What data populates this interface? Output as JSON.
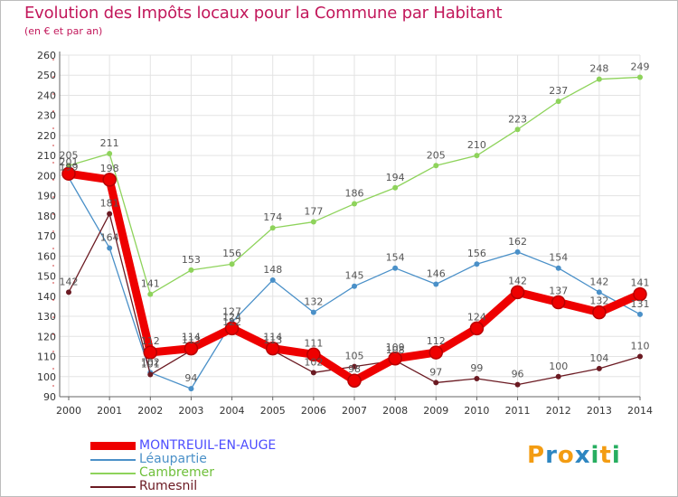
{
  "title": "Evolution des Impôts locaux pour la Commune par Habitant",
  "subtitle": "(en € et par an)",
  "logo": {
    "letters": [
      "P",
      "r",
      "o",
      "x",
      "i",
      "t",
      "i"
    ],
    "colors": [
      "#f39c12",
      "#2e86c1",
      "#f39c12",
      "#2e86c1",
      "#27ae60",
      "#f39c12",
      "#27ae60"
    ]
  },
  "chart_data": {
    "type": "line",
    "title": "Evolution des Impôts locaux pour la Commune par Habitant",
    "ylabel": "(en € et par an)",
    "xlabel": "",
    "ylim": [
      90,
      260
    ],
    "yticks": [
      90,
      100,
      110,
      120,
      130,
      140,
      150,
      160,
      170,
      180,
      190,
      200,
      210,
      220,
      230,
      240,
      250,
      260
    ],
    "x": [
      2000,
      2001,
      2002,
      2003,
      2004,
      2005,
      2006,
      2007,
      2008,
      2009,
      2010,
      2011,
      2012,
      2013,
      2014
    ],
    "grid": true,
    "legend_position": "bottom-left",
    "series": [
      {
        "name": "Cambremer",
        "color": "#8ed35b",
        "thick": false,
        "values": [
          205,
          211,
          141,
          153,
          156,
          174,
          177,
          186,
          194,
          205,
          210,
          223,
          237,
          248,
          249
        ]
      },
      {
        "name": "Léaupartie",
        "color": "#4a90c8",
        "thick": false,
        "values": [
          199,
          164,
          102,
          94,
          127,
          148,
          132,
          145,
          154,
          146,
          156,
          162,
          154,
          142,
          131
        ]
      },
      {
        "name": "Rumesnil",
        "color": "#6b1a22",
        "thick": false,
        "values": [
          142,
          181,
          101,
          113,
          122,
          113,
          102,
          105,
          108,
          97,
          99,
          96,
          100,
          104,
          110
        ]
      },
      {
        "name": "MONTREUIL-EN-AUGE",
        "color": "#ee0000",
        "thick": true,
        "values": [
          201,
          198,
          112,
          114,
          124,
          114,
          111,
          98,
          109,
          112,
          124,
          142,
          137,
          132,
          141
        ]
      }
    ]
  },
  "legend": [
    {
      "label": "MONTREUIL-EN-AUGE",
      "color": "#ee0000",
      "text_color": "#4d4dff",
      "thick": true
    },
    {
      "label": "Léaupartie",
      "color": "#4a90c8",
      "text_color": "#4a90c8",
      "thick": false
    },
    {
      "label": "Cambremer",
      "color": "#8ed35b",
      "text_color": "#6fbf3a",
      "thick": false
    },
    {
      "label": "Rumesnil",
      "color": "#6b1a22",
      "text_color": "#6b1a22",
      "thick": false
    }
  ]
}
